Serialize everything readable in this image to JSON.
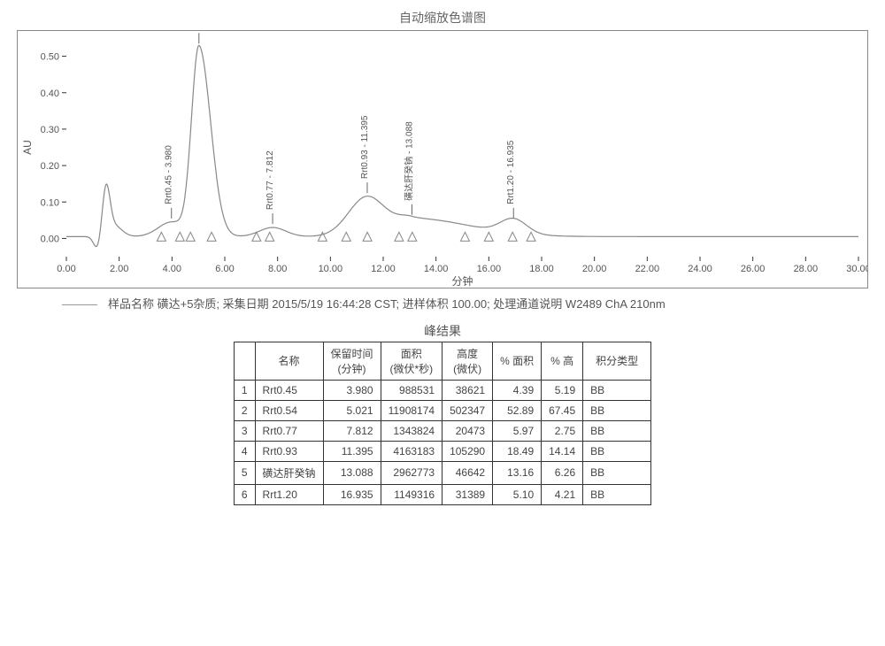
{
  "chart": {
    "title": "自动缩放色谱图",
    "ylabel": "AU",
    "xlabel": "分钟",
    "xlim": [
      0,
      30
    ],
    "ylim": [
      -0.05,
      0.55
    ],
    "xticks": [
      0.0,
      2.0,
      4.0,
      6.0,
      8.0,
      10.0,
      12.0,
      14.0,
      16.0,
      18.0,
      20.0,
      22.0,
      24.0,
      26.0,
      28.0,
      30.0
    ],
    "yticks": [
      0.0,
      0.1,
      0.2,
      0.3,
      0.4,
      0.5
    ],
    "xtick_labels": [
      "0.00",
      "2.00",
      "4.00",
      "6.00",
      "8.00",
      "10.00",
      "12.00",
      "14.00",
      "16.00",
      "18.00",
      "20.00",
      "22.00",
      "24.00",
      "26.00",
      "28.00",
      "30.00"
    ],
    "ytick_labels": [
      "0.00",
      "0.10",
      "0.20",
      "0.30",
      "0.40",
      "0.50"
    ],
    "line_color": "#888888",
    "axis_color": "#333333",
    "grid_color": "#ffffff",
    "tick_fontsize": 11,
    "label_fontsize": 12,
    "peak_label_fontsize": 10,
    "peaks": [
      {
        "label": "Rrt0.45 - 3.980",
        "rt": 3.98,
        "height": 0.04,
        "width": 0.5
      },
      {
        "label": "Rrt0.54 - 5.021",
        "rt": 5.021,
        "height": 0.52,
        "width": 0.4
      },
      {
        "label": "Rrt0.77 - 7.812",
        "rt": 7.812,
        "height": 0.025,
        "width": 0.5
      },
      {
        "label": "Rrt0.93 - 11.395",
        "rt": 11.395,
        "height": 0.11,
        "width": 0.7
      },
      {
        "label": "磺达肝癸钠 - 13.088",
        "rt": 13.088,
        "height": 0.05,
        "width": 1.2
      },
      {
        "label": "Rrt1.20 - 16.935",
        "rt": 16.935,
        "height": 0.04,
        "width": 0.5
      }
    ],
    "early_peaks": [
      {
        "rt": 1.5,
        "height": 0.13,
        "width": 0.15
      },
      {
        "rt": 1.8,
        "height": 0.03,
        "width": 0.3
      }
    ],
    "early_dip": {
      "rt": 1.2,
      "depth": -0.04,
      "width": 0.15
    },
    "markers_x": [
      3.6,
      4.3,
      4.7,
      5.5,
      7.2,
      7.7,
      9.7,
      10.6,
      11.4,
      12.6,
      13.1,
      15.1,
      16.0,
      16.9,
      17.6
    ],
    "baseline": 0.005
  },
  "metadata": {
    "text": "样品名称 磺达+5杂质; 采集日期 2015/5/19 16:44:28 CST; 进样体积 100.00; 处理通道说明 W2489 ChA 210nm"
  },
  "table": {
    "title": "峰结果",
    "headers": [
      "",
      "名称",
      "保留时间\n(分钟)",
      "面积\n(微伏*秒)",
      "高度\n(微伏)",
      "% 面积",
      "% 高",
      "积分类型"
    ],
    "rows": [
      [
        "1",
        "Rrt0.45",
        "3.980",
        "988531",
        "38621",
        "4.39",
        "5.19",
        "BB"
      ],
      [
        "2",
        "Rrt0.54",
        "5.021",
        "11908174",
        "502347",
        "52.89",
        "67.45",
        "BB"
      ],
      [
        "3",
        "Rrt0.77",
        "7.812",
        "1343824",
        "20473",
        "5.97",
        "2.75",
        "BB"
      ],
      [
        "4",
        "Rrt0.93",
        "11.395",
        "4163183",
        "105290",
        "18.49",
        "14.14",
        "BB"
      ],
      [
        "5",
        "磺达肝癸钠",
        "13.088",
        "2962773",
        "46642",
        "13.16",
        "6.26",
        "BB"
      ],
      [
        "6",
        "Rrt1.20",
        "16.935",
        "1149316",
        "31389",
        "5.10",
        "4.21",
        "BB"
      ]
    ],
    "col_align": [
      "center",
      "left",
      "right",
      "right",
      "right",
      "right",
      "right",
      "left"
    ]
  }
}
